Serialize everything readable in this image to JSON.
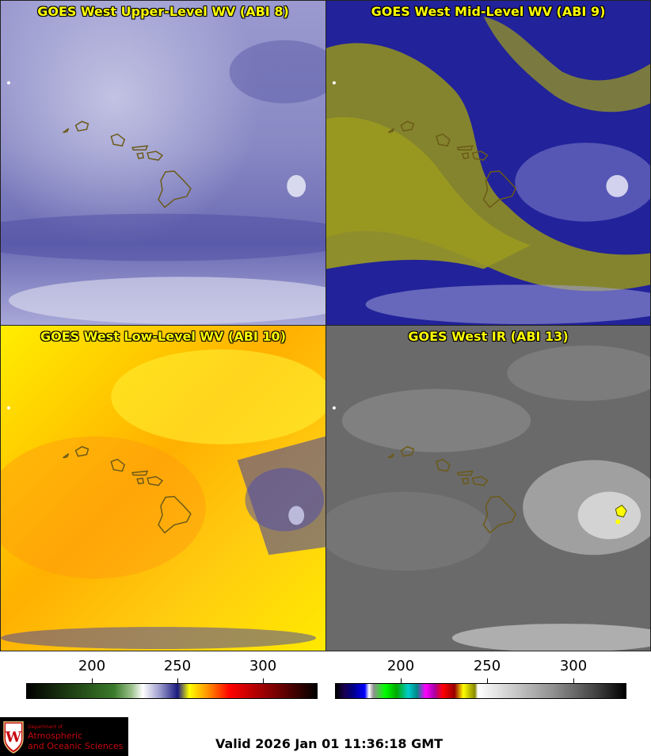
{
  "panels": [
    {
      "title": "GOES West Upper-Level WV (ABI 8)"
    },
    {
      "title": "GOES West Mid-Level WV (ABI 9)"
    },
    {
      "title": "GOES West Low-Level WV (ABI 10)"
    },
    {
      "title": "GOES West IR (ABI 13)"
    }
  ],
  "colorbar_left": {
    "ticks": [
      "200",
      "250",
      "300"
    ]
  },
  "colorbar_right": {
    "ticks": [
      "200",
      "250",
      "300"
    ]
  },
  "logo": {
    "line1": "Department of",
    "line2": "Atmospheric",
    "line3": "and Oceanic Sciences",
    "crest_letter": "W"
  },
  "valid_time": "Valid 2026 Jan 01 11:36:18 GMT",
  "colors": {
    "title_text": "#ffff00",
    "coastline": "#7a6a20"
  }
}
